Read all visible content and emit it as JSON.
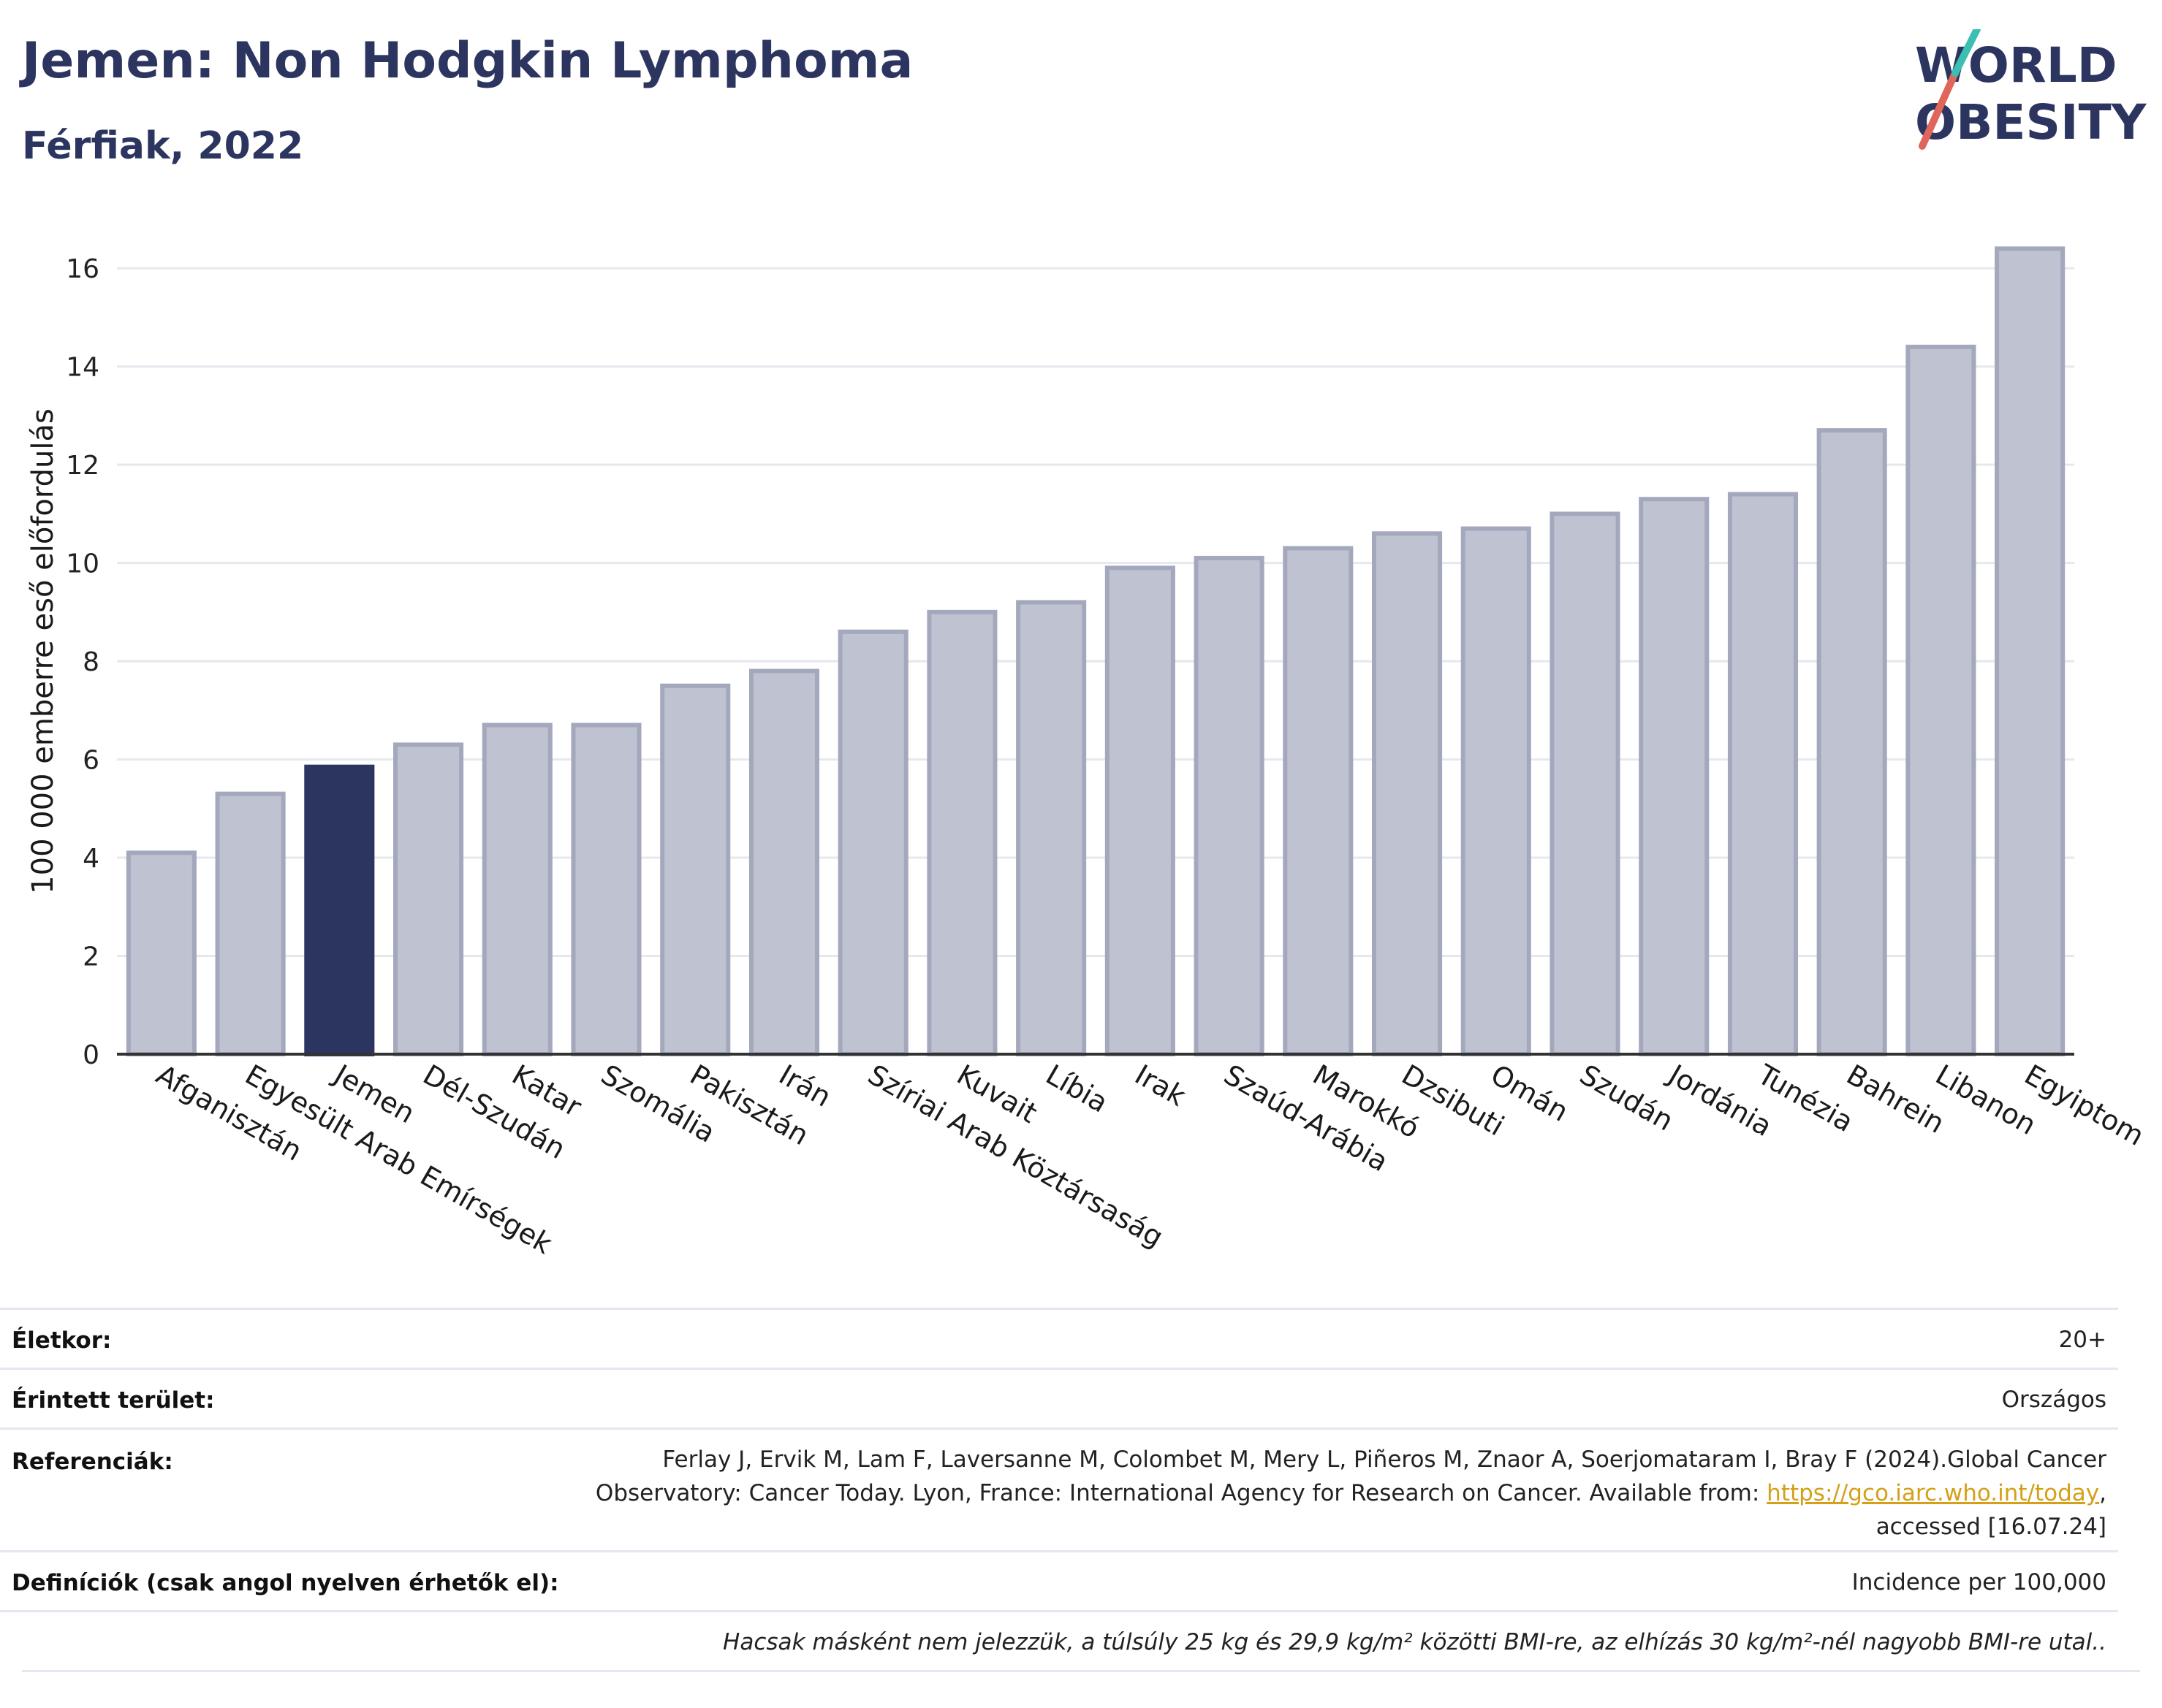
{
  "header": {
    "title": "Jemen: Non Hodgkin Lymphoma",
    "subtitle": "Férfiak, 2022"
  },
  "logo": {
    "line1": "WORLD",
    "line2": "OBESITY",
    "colors": {
      "text": "#2c3560",
      "slash_teal": "#3bbfb3",
      "slash_red": "#e0655a"
    }
  },
  "chart_data": {
    "type": "bar",
    "title": "Jemen: Non Hodgkin Lymphoma",
    "subtitle": "Férfiak, 2022",
    "xlabel": "",
    "ylabel": "100 000 emberre eső előfordulás",
    "ylim": [
      0,
      17
    ],
    "yticks": [
      0,
      2,
      4,
      6,
      8,
      10,
      12,
      14,
      16
    ],
    "grid": true,
    "highlight": "Jemen",
    "colors": {
      "default": "#bfc3d1",
      "default_stroke": "#a3a8bd",
      "highlight": "#2c3560"
    },
    "categories": [
      "Afganisztán",
      "Egyesült Arab Emírségek",
      "Jemen",
      "Dél-Szudán",
      "Katar",
      "Szomália",
      "Pakisztán",
      "Irán",
      "Szíriai Arab Köztársaság",
      "Kuvait",
      "Líbia",
      "Irak",
      "Szaúd-Arábia",
      "Marokkó",
      "Dzsibuti",
      "Omán",
      "Szudán",
      "Jordánia",
      "Tunézia",
      "Bahrein",
      "Libanon",
      "Egyiptom"
    ],
    "values": [
      4.1,
      5.3,
      5.85,
      6.3,
      6.7,
      6.7,
      7.5,
      7.8,
      8.6,
      9.0,
      9.2,
      9.9,
      10.1,
      10.3,
      10.6,
      10.7,
      11.0,
      11.3,
      11.4,
      12.7,
      14.4,
      16.4
    ]
  },
  "meta": {
    "age_label": "Életkor:",
    "age_value": "20+",
    "area_label": "Érintett terület:",
    "area_value": "Országos",
    "ref_label": "Referenciák:",
    "ref_line1": "Ferlay J, Ervik M, Lam F, Laversanne M, Colombet M, Mery L, Piñeros M, Znaor A, Soerjomataram I, Bray F (2024).Global Cancer",
    "ref_line2_pre": "Observatory: Cancer Today. Lyon, France: International Agency for Research on Cancer. Available from: ",
    "ref_link": "https://gco.iarc.who.int/today",
    "ref_line2_post": ",",
    "ref_line3": "accessed [16.07.24]",
    "def_label": "Definíciók (csak angol nyelven érhetők el):",
    "def_value": "Incidence per 100,000",
    "note": "Hacsak másként nem jelezzük, a túlsúly 25 kg és 29,9 kg/m² közötti BMI-re, az elhízás 30 kg/m²-nél nagyobb BMI-re utal.."
  }
}
